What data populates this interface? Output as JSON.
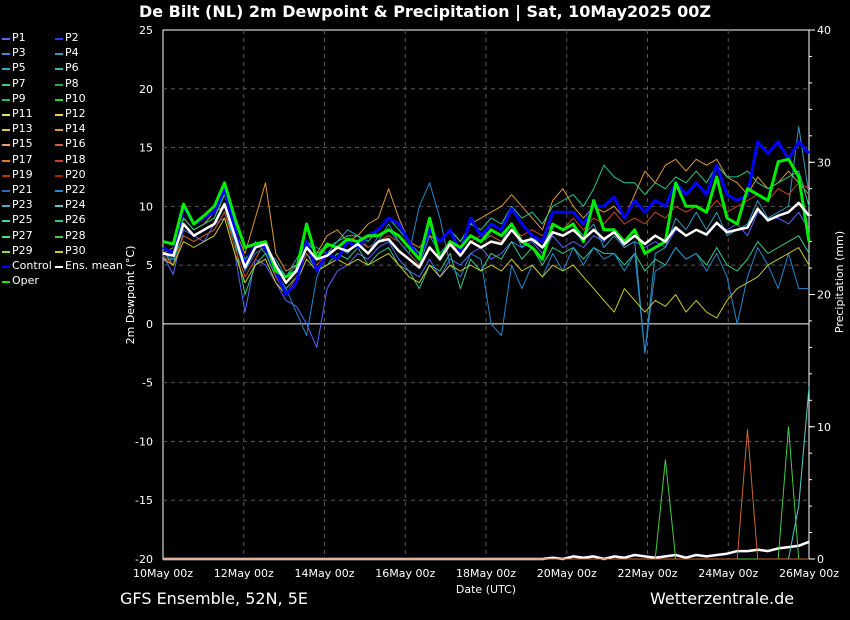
{
  "title": "De Bilt  (NL)  2m Dewpoint & Precipitation | Sat, 10May2025 00Z",
  "footer": {
    "model": "GFS Ensemble, 52N, 5E",
    "site": "Wetterzentrale.de"
  },
  "legend": [
    {
      "name": "P1",
      "color": "#5566ff"
    },
    {
      "name": "P2",
      "color": "#1e3cff"
    },
    {
      "name": "P3",
      "color": "#4488dd"
    },
    {
      "name": "P4",
      "color": "#3399bb"
    },
    {
      "name": "P5",
      "color": "#33aacc"
    },
    {
      "name": "P6",
      "color": "#33bbaa"
    },
    {
      "name": "P7",
      "color": "#33cc88"
    },
    {
      "name": "P8",
      "color": "#22aa55"
    },
    {
      "name": "P9",
      "color": "#22bb66"
    },
    {
      "name": "P10",
      "color": "#22dd22"
    },
    {
      "name": "P11",
      "color": "#ccee55"
    },
    {
      "name": "P12",
      "color": "#eecc55"
    },
    {
      "name": "P13",
      "color": "#ddcc44"
    },
    {
      "name": "P14",
      "color": "#dd9933"
    },
    {
      "name": "P15",
      "color": "#ee9966"
    },
    {
      "name": "P16",
      "color": "#cc6633"
    },
    {
      "name": "P17",
      "color": "#dd7733"
    },
    {
      "name": "P18",
      "color": "#cc4422"
    },
    {
      "name": "P19",
      "color": "#bb3311"
    },
    {
      "name": "P20",
      "color": "#aa2200"
    },
    {
      "name": "P21",
      "color": "#3366cc"
    },
    {
      "name": "P22",
      "color": "#2288cc"
    },
    {
      "name": "P23",
      "color": "#44aacc"
    },
    {
      "name": "P24",
      "color": "#55cccc"
    },
    {
      "name": "P25",
      "color": "#33ddaa"
    },
    {
      "name": "P26",
      "color": "#22cc88"
    },
    {
      "name": "P27",
      "color": "#33ee77"
    },
    {
      "name": "P28",
      "color": "#44cc44"
    },
    {
      "name": "P29",
      "color": "#88dd33"
    },
    {
      "name": "P30",
      "color": "#cccc22"
    },
    {
      "name": "Control",
      "color": "#0000ff"
    },
    {
      "name": "Ens. mean",
      "color": "#ffffff"
    },
    {
      "name": "Oper",
      "color": "#00ee00"
    }
  ],
  "chart_data": {
    "type": "line",
    "x_ticks": [
      "10May 00z",
      "12May 00z",
      "14May 00z",
      "16May 00z",
      "18May 00z",
      "20May 00z",
      "22May 00z",
      "24May 00z",
      "26May 00z"
    ],
    "xlabel": "Date (UTC)",
    "ylabel": "2m Dewpoint (°C)",
    "ylabel_right": "Precipitation (mm)",
    "ylim": [
      -20,
      25
    ],
    "y_ticks": [
      25,
      20,
      15,
      10,
      5,
      0,
      -5,
      -10,
      -15,
      -20
    ],
    "ylim_right": [
      0,
      40
    ],
    "y_ticks_right": [
      40,
      30,
      20,
      10,
      0
    ],
    "x_range_days": [
      0,
      16
    ],
    "grid": true,
    "series": [
      {
        "name": "Ens. mean",
        "color": "#ffffff",
        "values": [
          6.0,
          5.8,
          8.5,
          7.5,
          8.0,
          8.5,
          10.2,
          7.5,
          4.8,
          6.5,
          6.8,
          5.0,
          3.5,
          4.5,
          6.5,
          5.5,
          5.8,
          6.5,
          6.2,
          6.8,
          6.0,
          7.0,
          7.2,
          6.2,
          5.5,
          4.8,
          6.5,
          5.5,
          6.8,
          5.8,
          7.0,
          6.5,
          7.0,
          6.8,
          8.0,
          7.0,
          7.2,
          6.5,
          7.8,
          7.5,
          8.0,
          7.2,
          8.0,
          7.2,
          7.8,
          6.8,
          7.5,
          6.8,
          7.5,
          7.0,
          8.2,
          7.5,
          8.0,
          7.6,
          8.6,
          7.8,
          8.0,
          8.2,
          9.8,
          8.8,
          9.2,
          9.5,
          10.3,
          9.2
        ]
      },
      {
        "name": "Control",
        "color": "#0000ff",
        "values": [
          6.5,
          6.0,
          10.0,
          8.5,
          9.0,
          9.5,
          11.5,
          8.0,
          5.0,
          6.8,
          6.5,
          4.5,
          2.5,
          3.5,
          7.0,
          4.5,
          6.0,
          5.5,
          7.0,
          6.5,
          7.5,
          8.0,
          9.0,
          8.5,
          7.0,
          5.5,
          8.0,
          7.0,
          8.0,
          6.0,
          9.0,
          7.5,
          8.5,
          8.0,
          9.8,
          8.5,
          7.5,
          7.0,
          9.5,
          9.5,
          9.5,
          8.5,
          10.0,
          10.0,
          10.8,
          9.0,
          10.5,
          9.5,
          10.5,
          10.0,
          12.0,
          11.0,
          12.0,
          11.0,
          13.5,
          11.0,
          10.5,
          11.0,
          15.5,
          14.5,
          15.5,
          14.0,
          15.5,
          14.5
        ]
      },
      {
        "name": "Oper",
        "color": "#00ee00",
        "values": [
          7.0,
          6.8,
          10.2,
          8.5,
          9.2,
          10.0,
          12.0,
          9.0,
          6.5,
          6.8,
          7.0,
          4.5,
          4.0,
          4.5,
          8.5,
          5.5,
          6.8,
          6.5,
          7.2,
          7.0,
          7.5,
          7.5,
          8.0,
          7.5,
          6.5,
          5.5,
          9.0,
          5.5,
          7.0,
          6.5,
          7.5,
          7.0,
          8.0,
          7.5,
          8.5,
          7.0,
          6.5,
          5.5,
          8.5,
          8.0,
          8.5,
          7.0,
          10.5,
          8.0,
          8.0,
          7.0,
          8.0,
          6.0,
          6.5,
          7.0,
          12.0,
          10.0,
          10.0,
          9.5,
          12.5,
          9.0,
          8.5,
          11.5,
          11.0,
          10.5,
          13.8,
          14.0,
          12.5,
          7.0
        ]
      },
      {
        "name": "P1",
        "color": "#5566ff",
        "values": [
          5.8,
          4.2,
          8.0,
          7.5,
          7.0,
          8.5,
          9.0,
          6.0,
          1.0,
          5.5,
          5.0,
          3.5,
          2.0,
          1.5,
          0.0,
          -2.0,
          3.0,
          4.5,
          5.0,
          6.0,
          5.5,
          6.5,
          7.0,
          5.5,
          4.5,
          4.0,
          5.5,
          4.0,
          5.5,
          5.0,
          6.0,
          6.5,
          5.5,
          6.0,
          7.0,
          6.5,
          7.0,
          6.0,
          7.5,
          6.5,
          7.0,
          6.5,
          7.5,
          7.0,
          8.0,
          6.5,
          7.0,
          6.5,
          7.0,
          6.5,
          8.0,
          7.5,
          8.0,
          7.5,
          8.5,
          8.0,
          8.5,
          7.5,
          9.5,
          9.0,
          9.0,
          8.5,
          9.5,
          8.0
        ]
      },
      {
        "name": "P4",
        "color": "#3399bb",
        "values": [
          6.2,
          5.0,
          9.0,
          8.0,
          8.5,
          9.0,
          11.0,
          8.5,
          5.0,
          7.0,
          6.0,
          5.5,
          4.0,
          5.5,
          7.0,
          6.5,
          6.0,
          7.0,
          8.0,
          7.5,
          6.5,
          7.0,
          8.5,
          7.0,
          6.0,
          5.0,
          7.5,
          6.0,
          7.0,
          6.5,
          7.5,
          7.0,
          7.5,
          7.0,
          8.5,
          6.5,
          7.5,
          6.5,
          8.5,
          8.0,
          8.5,
          7.5,
          8.5,
          6.5,
          7.5,
          6.5,
          7.0,
          -2.5,
          6.0,
          6.5,
          9.0,
          8.0,
          9.5,
          8.0,
          9.5,
          7.5,
          8.0,
          8.5,
          10.5,
          9.0,
          9.5,
          10.0,
          16.8,
          11.0
        ]
      },
      {
        "name": "P7",
        "color": "#33cc88",
        "values": [
          5.5,
          5.5,
          7.5,
          7.0,
          7.5,
          8.0,
          9.5,
          7.0,
          2.5,
          5.0,
          6.0,
          4.0,
          3.0,
          4.0,
          6.0,
          4.5,
          5.0,
          6.0,
          5.5,
          6.5,
          5.0,
          6.0,
          6.5,
          5.0,
          4.5,
          3.0,
          5.0,
          4.5,
          6.0,
          3.0,
          5.5,
          4.5,
          6.0,
          5.5,
          7.0,
          5.5,
          6.5,
          5.0,
          6.5,
          6.0,
          6.5,
          5.5,
          6.5,
          6.0,
          6.0,
          5.0,
          6.0,
          4.5,
          5.5,
          5.0,
          6.5,
          5.5,
          6.0,
          5.0,
          6.5,
          5.0,
          4.5,
          5.5,
          7.0,
          6.0,
          6.5,
          7.0,
          7.5,
          6.0
        ]
      },
      {
        "name": "P14",
        "color": "#dd9933",
        "values": [
          6.0,
          6.5,
          9.0,
          8.0,
          8.5,
          9.5,
          10.0,
          8.0,
          6.0,
          9.0,
          12.0,
          6.0,
          4.5,
          5.0,
          7.0,
          6.0,
          7.5,
          8.0,
          7.0,
          7.5,
          8.5,
          9.0,
          11.5,
          9.0,
          7.0,
          6.5,
          7.5,
          7.0,
          8.0,
          7.0,
          8.5,
          9.0,
          9.5,
          10.0,
          11.0,
          10.0,
          9.0,
          8.0,
          10.5,
          11.5,
          10.0,
          9.0,
          10.0,
          9.5,
          10.0,
          9.0,
          11.0,
          13.0,
          12.0,
          13.5,
          14.0,
          13.0,
          14.0,
          13.5,
          14.0,
          12.5,
          12.0,
          11.0,
          12.5,
          11.5,
          12.0,
          13.0,
          12.0,
          11.0
        ]
      },
      {
        "name": "P18",
        "color": "#cc4422",
        "values": [
          5.8,
          5.0,
          7.5,
          7.0,
          7.5,
          8.0,
          9.5,
          6.5,
          4.0,
          5.5,
          7.0,
          4.0,
          2.5,
          4.0,
          6.0,
          5.0,
          6.0,
          6.5,
          6.0,
          7.0,
          6.5,
          7.0,
          7.5,
          7.0,
          6.0,
          5.0,
          6.5,
          5.5,
          7.0,
          6.0,
          7.0,
          7.5,
          7.5,
          7.0,
          8.0,
          7.5,
          8.0,
          7.5,
          8.5,
          8.0,
          9.0,
          8.0,
          9.0,
          8.5,
          9.5,
          8.5,
          9.0,
          8.5,
          9.5,
          9.0,
          10.0,
          9.5,
          10.0,
          9.5,
          10.5,
          9.5,
          10.0,
          10.5,
          11.0,
          10.5,
          11.5,
          11.0,
          12.0,
          11.5
        ]
      },
      {
        "name": "P22",
        "color": "#2288cc",
        "values": [
          6.0,
          5.5,
          8.5,
          7.5,
          8.0,
          8.5,
          10.0,
          7.0,
          4.5,
          6.0,
          6.5,
          4.5,
          3.0,
          1.0,
          -1.0,
          4.0,
          6.0,
          6.5,
          6.0,
          7.0,
          6.0,
          7.5,
          8.0,
          7.0,
          6.0,
          10.0,
          12.0,
          9.0,
          5.0,
          4.0,
          6.0,
          5.5,
          0.0,
          -1.0,
          5.0,
          3.0,
          5.0,
          4.0,
          6.0,
          4.5,
          6.5,
          5.0,
          6.5,
          5.5,
          6.0,
          4.5,
          6.0,
          -2.5,
          4.5,
          5.0,
          6.5,
          5.5,
          6.0,
          4.5,
          6.0,
          4.0,
          0.0,
          4.0,
          6.5,
          5.0,
          3.0,
          6.0,
          3.0,
          3.0
        ]
      },
      {
        "name": "P26",
        "color": "#22cc88",
        "values": [
          6.5,
          6.0,
          9.0,
          8.0,
          8.5,
          9.0,
          11.0,
          8.0,
          5.5,
          6.5,
          7.0,
          5.0,
          4.0,
          5.0,
          7.0,
          6.0,
          6.5,
          7.0,
          7.5,
          7.5,
          7.0,
          8.0,
          9.0,
          8.0,
          7.0,
          6.0,
          8.0,
          7.0,
          8.0,
          7.0,
          8.5,
          8.0,
          9.0,
          8.5,
          10.0,
          9.0,
          9.5,
          8.5,
          10.0,
          10.5,
          11.0,
          10.0,
          11.5,
          13.5,
          12.5,
          12.0,
          12.0,
          11.0,
          12.0,
          11.5,
          12.5,
          12.0,
          13.0,
          12.0,
          13.5,
          12.5,
          12.5,
          13.0,
          12.0,
          11.5,
          12.0,
          12.5,
          13.0,
          10.0
        ]
      },
      {
        "name": "P30",
        "color": "#cccc22",
        "values": [
          5.5,
          5.0,
          7.0,
          6.5,
          7.0,
          7.5,
          9.0,
          6.0,
          3.5,
          5.0,
          5.5,
          3.5,
          2.5,
          3.5,
          5.5,
          4.5,
          5.0,
          5.5,
          5.0,
          5.5,
          5.0,
          5.5,
          6.0,
          5.0,
          4.0,
          3.5,
          5.0,
          4.0,
          5.0,
          4.5,
          5.0,
          4.5,
          5.0,
          4.5,
          5.5,
          4.5,
          5.0,
          4.0,
          5.0,
          4.5,
          5.0,
          4.0,
          3.0,
          2.0,
          1.0,
          3.0,
          2.0,
          1.0,
          2.0,
          1.5,
          2.5,
          1.0,
          2.0,
          1.0,
          0.5,
          2.0,
          3.0,
          3.5,
          4.0,
          5.0,
          5.5,
          6.0,
          6.5,
          5.0
        ]
      }
    ],
    "precip_series": [
      {
        "name": "Ens. mean",
        "color": "#ffffff",
        "values": [
          0,
          0,
          0,
          0,
          0,
          0,
          0,
          0,
          0,
          0,
          0,
          0,
          0,
          0,
          0,
          0,
          0,
          0,
          0,
          0,
          0,
          0,
          0,
          0,
          0,
          0,
          0,
          0,
          0,
          0,
          0,
          0,
          0,
          0,
          0,
          0,
          0,
          0,
          0.1,
          0,
          0.2,
          0.1,
          0.2,
          0,
          0.2,
          0.1,
          0.3,
          0.2,
          0.1,
          0.2,
          0.3,
          0.1,
          0.3,
          0.2,
          0.3,
          0.4,
          0.6,
          0.6,
          0.7,
          0.6,
          0.8,
          0.9,
          1.0,
          1.3
        ]
      },
      {
        "name": "P24",
        "color": "#55cccc",
        "values": [
          0,
          0,
          0,
          0,
          0,
          0,
          0,
          0,
          0,
          0,
          0,
          0,
          0,
          0,
          0,
          0,
          0,
          0,
          0,
          0,
          0,
          0,
          0,
          0,
          0,
          0,
          0,
          0,
          0,
          0,
          0,
          0,
          0,
          0,
          0,
          0,
          0,
          0,
          0,
          0,
          0,
          0,
          0,
          0,
          0,
          0,
          0,
          0,
          0,
          0,
          0,
          0,
          0,
          0,
          0,
          0,
          0,
          0,
          0,
          0,
          0,
          0,
          4.0,
          13.0
        ]
      },
      {
        "name": "P28",
        "color": "#44cc44",
        "values": [
          0,
          0,
          0,
          0,
          0,
          0,
          0,
          0,
          0,
          0,
          0,
          0,
          0,
          0,
          0,
          0,
          0,
          0,
          0,
          0,
          0,
          0,
          0,
          0,
          0,
          0,
          0,
          0,
          0,
          0,
          0,
          0,
          0,
          0,
          0,
          0,
          0,
          0,
          0,
          0,
          0,
          0,
          0,
          0,
          0,
          0,
          0,
          0,
          0,
          7.5,
          0,
          0,
          0,
          0,
          0,
          0,
          0,
          0,
          0,
          0,
          0,
          10.0,
          0,
          0
        ]
      },
      {
        "name": "P16",
        "color": "#cc6633",
        "values": [
          0,
          0,
          0,
          0,
          0,
          0,
          0,
          0,
          0,
          0,
          0,
          0,
          0,
          0,
          0,
          0,
          0,
          0,
          0,
          0,
          0,
          0,
          0,
          0,
          0,
          0,
          0,
          0,
          0,
          0,
          0,
          0,
          0,
          0,
          0,
          0,
          0,
          0,
          0,
          0,
          0,
          0,
          0,
          0,
          0,
          0,
          0,
          0,
          0,
          0,
          0,
          0,
          0,
          0,
          0,
          0,
          0,
          9.8,
          0,
          0,
          0,
          0,
          0,
          0
        ]
      }
    ]
  }
}
